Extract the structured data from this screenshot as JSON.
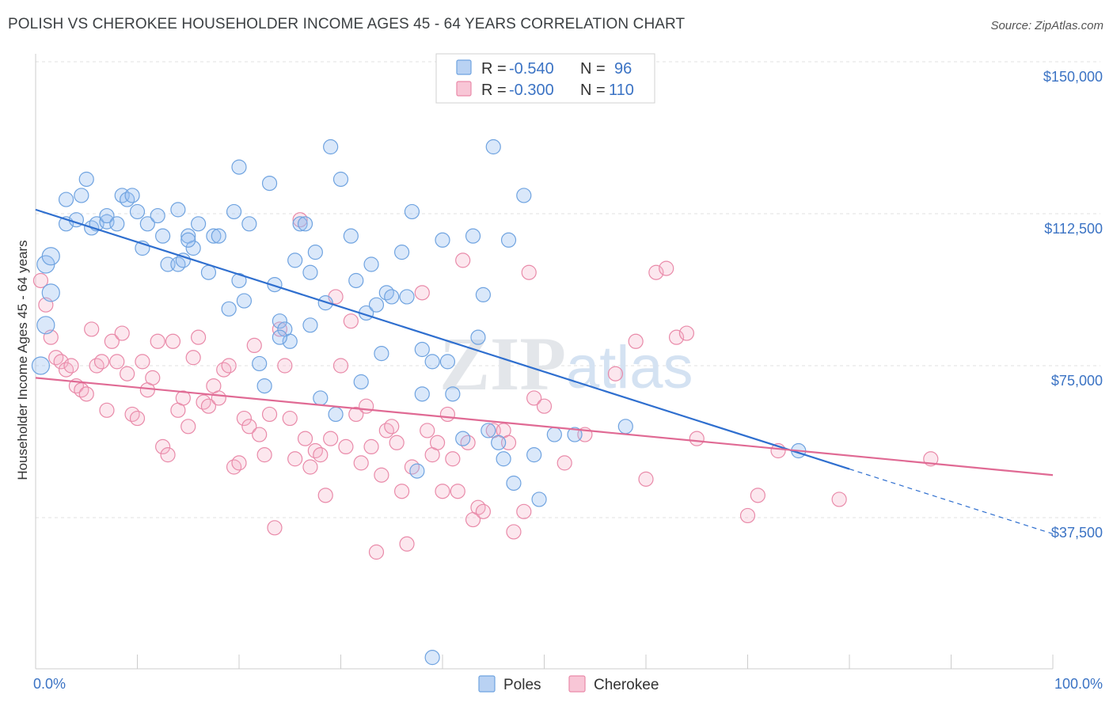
{
  "title": "POLISH VS CHEROKEE HOUSEHOLDER INCOME AGES 45 - 64 YEARS CORRELATION CHART",
  "source": "Source: ZipAtlas.com",
  "watermark": {
    "zip": "ZIP",
    "atlas": "atlas"
  },
  "legend": {
    "r_label": "R =",
    "n_label": "N =",
    "rows": [
      {
        "r": "-0.540",
        "n": "96",
        "color": "#6fa3e0",
        "fill": "#b9d2f3"
      },
      {
        "r": "-0.300",
        "n": "110",
        "color": "#e98aa9",
        "fill": "#f8c6d6"
      }
    ]
  },
  "bottom_legend": [
    {
      "label": "Poles",
      "color": "#6fa3e0",
      "fill": "#b9d2f3"
    },
    {
      "label": "Cherokee",
      "color": "#e98aa9",
      "fill": "#f8c6d6"
    }
  ],
  "colors": {
    "poles_line": "#2f6fcf",
    "cherokee_line": "#e06a94",
    "poles_dot": "#6fa3e0",
    "cherokee_dot": "#e98aa9"
  },
  "chart_data": {
    "type": "scatter",
    "ylabel": "Householder Income Ages 45 - 64 years",
    "xlabel": "",
    "x_tick_labels": [
      "0.0%",
      "100.0%"
    ],
    "y_tick_labels": [
      "$37,500",
      "$75,000",
      "$112,500",
      "$150,000"
    ],
    "xlim": [
      0,
      100
    ],
    "ylim": [
      0,
      150000
    ],
    "y_ticks": [
      37500,
      75000,
      112500,
      150000
    ],
    "grid": true,
    "legend_position": "top-center",
    "series": [
      {
        "name": "Poles",
        "trend": {
          "x0": 0,
          "y0": 113500,
          "x1": 80,
          "y1": 49500,
          "dashed_to_x": 100,
          "dashed_to_y": 33500
        },
        "points": [
          [
            1,
            100000
          ],
          [
            1.5,
            102000
          ],
          [
            1.5,
            93000
          ],
          [
            1,
            85000
          ],
          [
            0.5,
            75000
          ],
          [
            3,
            110000
          ],
          [
            3,
            116000
          ],
          [
            4,
            111000
          ],
          [
            4.5,
            117000
          ],
          [
            5,
            121000
          ],
          [
            5.5,
            109000
          ],
          [
            6,
            110000
          ],
          [
            7,
            110500
          ],
          [
            7,
            112000
          ],
          [
            8,
            110000
          ],
          [
            8.5,
            117000
          ],
          [
            9,
            116000
          ],
          [
            9.5,
            117000
          ],
          [
            10,
            113000
          ],
          [
            10.5,
            104000
          ],
          [
            11,
            110000
          ],
          [
            12,
            112000
          ],
          [
            12.5,
            107000
          ],
          [
            13,
            100000
          ],
          [
            14,
            100000
          ],
          [
            14.5,
            101000
          ],
          [
            14,
            113500
          ],
          [
            15,
            107000
          ],
          [
            15.5,
            104000
          ],
          [
            15,
            106000
          ],
          [
            16,
            110000
          ],
          [
            17,
            98000
          ],
          [
            17.5,
            107000
          ],
          [
            18,
            107000
          ],
          [
            19,
            89000
          ],
          [
            19.5,
            113000
          ],
          [
            20,
            124000
          ],
          [
            20.5,
            91000
          ],
          [
            21,
            110000
          ],
          [
            22,
            75500
          ],
          [
            22.5,
            70000
          ],
          [
            23,
            120000
          ],
          [
            23.5,
            95000
          ],
          [
            24,
            86000
          ],
          [
            24.5,
            84000
          ],
          [
            25,
            81000
          ],
          [
            25.5,
            101000
          ],
          [
            26,
            110000
          ],
          [
            26.5,
            110000
          ],
          [
            27,
            85000
          ],
          [
            27.5,
            103000
          ],
          [
            28,
            67000
          ],
          [
            28.5,
            90500
          ],
          [
            29,
            129000
          ],
          [
            29.5,
            63000
          ],
          [
            30,
            121000
          ],
          [
            31,
            107000
          ],
          [
            31.5,
            96000
          ],
          [
            32,
            71000
          ],
          [
            32.5,
            88000
          ],
          [
            33,
            100000
          ],
          [
            33.5,
            90000
          ],
          [
            34,
            78000
          ],
          [
            34.5,
            93000
          ],
          [
            35,
            92000
          ],
          [
            36,
            103000
          ],
          [
            36.5,
            92000
          ],
          [
            37,
            113000
          ],
          [
            38,
            68000
          ],
          [
            37.5,
            49000
          ],
          [
            38,
            79000
          ],
          [
            39,
            76000
          ],
          [
            40,
            106000
          ],
          [
            40.5,
            76000
          ],
          [
            41,
            68000
          ],
          [
            42,
            57000
          ],
          [
            43,
            107000
          ],
          [
            43.5,
            82000
          ],
          [
            44,
            92500
          ],
          [
            44.5,
            59000
          ],
          [
            45,
            129000
          ],
          [
            45.5,
            56000
          ],
          [
            46,
            52000
          ],
          [
            46.5,
            106000
          ],
          [
            47,
            46000
          ],
          [
            48,
            117000
          ],
          [
            49,
            53000
          ],
          [
            49.5,
            42000
          ],
          [
            51,
            58000
          ],
          [
            53,
            58000
          ],
          [
            58,
            60000
          ],
          [
            75,
            54000
          ],
          [
            39,
            3000
          ],
          [
            27,
            98000
          ],
          [
            20,
            96000
          ],
          [
            24,
            82000
          ]
        ]
      },
      {
        "name": "Cherokee",
        "trend": {
          "x0": 0,
          "y0": 72000,
          "x1": 100,
          "y1": 48000
        },
        "points": [
          [
            0.5,
            96000
          ],
          [
            1,
            90000
          ],
          [
            1.5,
            82000
          ],
          [
            2,
            77000
          ],
          [
            2.5,
            76000
          ],
          [
            3,
            74000
          ],
          [
            3.5,
            75000
          ],
          [
            4,
            70000
          ],
          [
            4.5,
            69000
          ],
          [
            5,
            68000
          ],
          [
            5.5,
            84000
          ],
          [
            6,
            75000
          ],
          [
            6.5,
            76000
          ],
          [
            7,
            64000
          ],
          [
            7.5,
            81000
          ],
          [
            8,
            76000
          ],
          [
            8.5,
            83000
          ],
          [
            9,
            73000
          ],
          [
            9.5,
            63000
          ],
          [
            10,
            62000
          ],
          [
            10.5,
            76000
          ],
          [
            11,
            69000
          ],
          [
            11.5,
            72000
          ],
          [
            12,
            81000
          ],
          [
            12.5,
            55000
          ],
          [
            13,
            53000
          ],
          [
            13.5,
            81000
          ],
          [
            14,
            64000
          ],
          [
            14.5,
            67000
          ],
          [
            15,
            60000
          ],
          [
            15.5,
            77000
          ],
          [
            16,
            82000
          ],
          [
            16.5,
            66000
          ],
          [
            17,
            65000
          ],
          [
            17.5,
            70000
          ],
          [
            18,
            67000
          ],
          [
            18.5,
            74000
          ],
          [
            19,
            75000
          ],
          [
            19.5,
            50000
          ],
          [
            20,
            51000
          ],
          [
            20.5,
            62000
          ],
          [
            21,
            60000
          ],
          [
            21.5,
            80000
          ],
          [
            22,
            58000
          ],
          [
            22.5,
            53000
          ],
          [
            23,
            63000
          ],
          [
            23.5,
            35000
          ],
          [
            24,
            84000
          ],
          [
            24.5,
            75000
          ],
          [
            25,
            62000
          ],
          [
            25.5,
            52000
          ],
          [
            26,
            111000
          ],
          [
            26.5,
            57000
          ],
          [
            27,
            50000
          ],
          [
            27.5,
            54000
          ],
          [
            28,
            53000
          ],
          [
            28.5,
            43000
          ],
          [
            29,
            57000
          ],
          [
            29.5,
            92000
          ],
          [
            30,
            75000
          ],
          [
            30.5,
            55000
          ],
          [
            31,
            86000
          ],
          [
            31.5,
            63000
          ],
          [
            32,
            51000
          ],
          [
            32.5,
            65000
          ],
          [
            33,
            55000
          ],
          [
            33.5,
            29000
          ],
          [
            34,
            48000
          ],
          [
            34.5,
            59000
          ],
          [
            35,
            60000
          ],
          [
            35.5,
            56000
          ],
          [
            36,
            44000
          ],
          [
            36.5,
            31000
          ],
          [
            37,
            50000
          ],
          [
            38,
            93000
          ],
          [
            38.5,
            59000
          ],
          [
            39,
            53000
          ],
          [
            39.5,
            56000
          ],
          [
            40,
            44000
          ],
          [
            40.5,
            63000
          ],
          [
            41,
            52000
          ],
          [
            41.5,
            44000
          ],
          [
            42,
            101000
          ],
          [
            42.5,
            56000
          ],
          [
            43,
            37000
          ],
          [
            43.5,
            40000
          ],
          [
            44,
            39000
          ],
          [
            45,
            59000
          ],
          [
            46,
            59000
          ],
          [
            46.5,
            56000
          ],
          [
            47,
            34000
          ],
          [
            48,
            39000
          ],
          [
            48.5,
            98000
          ],
          [
            49,
            67000
          ],
          [
            50,
            65000
          ],
          [
            52,
            51000
          ],
          [
            54,
            58000
          ],
          [
            57,
            73000
          ],
          [
            59,
            81000
          ],
          [
            60,
            47000
          ],
          [
            61,
            98000
          ],
          [
            62,
            99000
          ],
          [
            63,
            82000
          ],
          [
            64,
            83000
          ],
          [
            65,
            57000
          ],
          [
            70,
            38000
          ],
          [
            71,
            43000
          ],
          [
            73,
            54000
          ],
          [
            79,
            42000
          ],
          [
            88,
            52000
          ]
        ]
      }
    ]
  }
}
